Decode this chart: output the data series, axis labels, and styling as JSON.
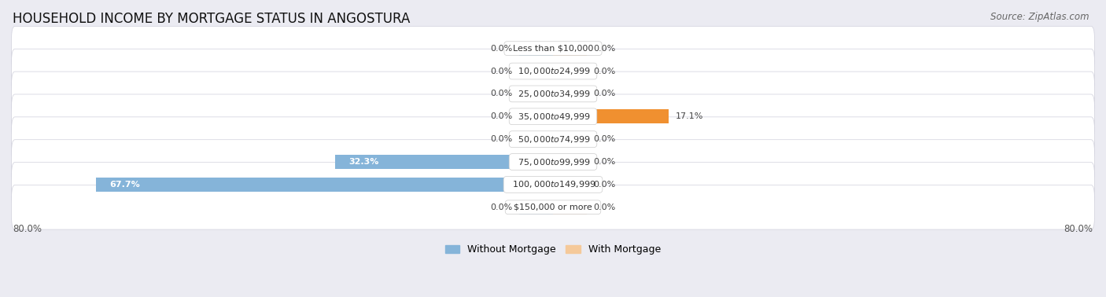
{
  "title": "HOUSEHOLD INCOME BY MORTGAGE STATUS IN ANGOSTURA",
  "source": "Source: ZipAtlas.com",
  "categories": [
    "Less than $10,000",
    "$10,000 to $24,999",
    "$25,000 to $34,999",
    "$35,000 to $49,999",
    "$50,000 to $74,999",
    "$75,000 to $99,999",
    "$100,000 to $149,999",
    "$150,000 or more"
  ],
  "without_mortgage": [
    0.0,
    0.0,
    0.0,
    0.0,
    0.0,
    32.3,
    67.7,
    0.0
  ],
  "with_mortgage": [
    0.0,
    0.0,
    0.0,
    17.1,
    0.0,
    0.0,
    0.0,
    0.0
  ],
  "color_without": "#85b4d9",
  "color_with_light": "#f5c99a",
  "color_with_bright": "#f09030",
  "xlim_left": -80.0,
  "xlim_right": 80.0,
  "stub_size": 5.0,
  "background_color": "#ebebf2",
  "row_bg_color": "#f5f5f8",
  "title_fontsize": 12,
  "source_fontsize": 8.5,
  "bar_height": 0.62,
  "legend_label_without": "Without Mortgage",
  "legend_label_with": "With Mortgage"
}
